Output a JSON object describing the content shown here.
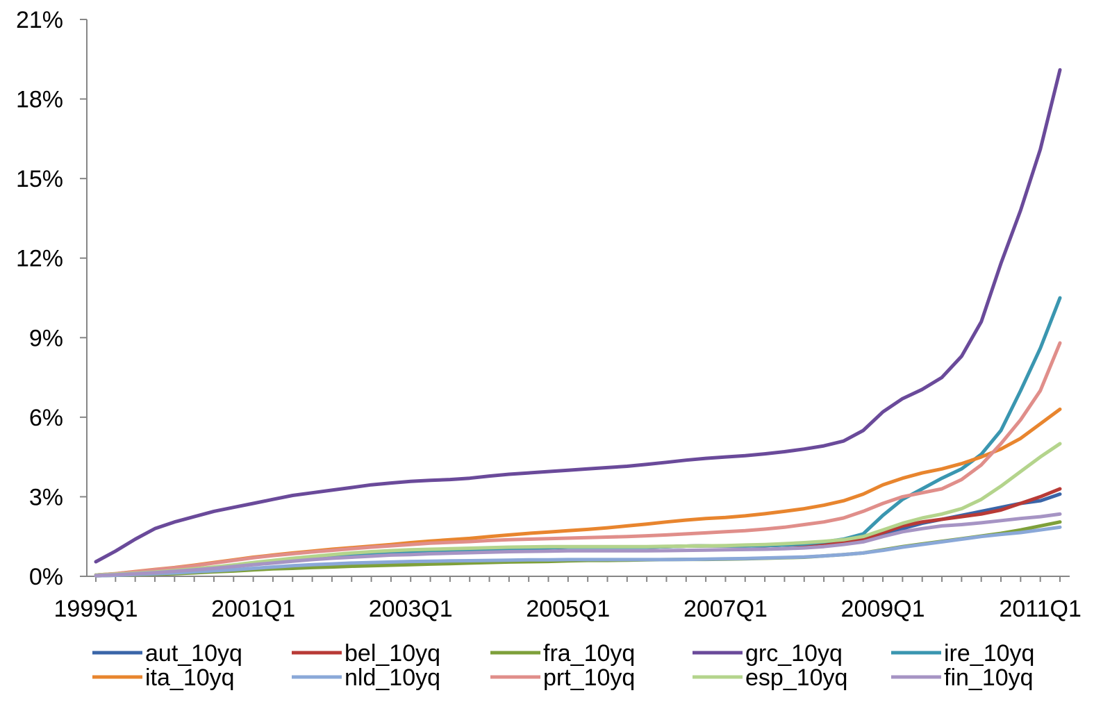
{
  "chart_data": {
    "type": "line",
    "title": "",
    "xlabel": "",
    "ylabel": "",
    "ylim": [
      0,
      21
    ],
    "y_ticks": [
      0,
      3,
      6,
      9,
      12,
      15,
      18,
      21
    ],
    "y_tick_labels": [
      "0%",
      "3%",
      "6%",
      "9%",
      "12%",
      "15%",
      "18%",
      "21%"
    ],
    "x_ticks": [
      "1999Q1",
      "2001Q1",
      "2003Q1",
      "2005Q1",
      "2007Q1",
      "2009Q1",
      "2011Q1"
    ],
    "x": [
      "1999Q1",
      "1999Q2",
      "1999Q3",
      "1999Q4",
      "2000Q1",
      "2000Q2",
      "2000Q3",
      "2000Q4",
      "2001Q1",
      "2001Q2",
      "2001Q3",
      "2001Q4",
      "2002Q1",
      "2002Q2",
      "2002Q3",
      "2002Q4",
      "2003Q1",
      "2003Q2",
      "2003Q3",
      "2003Q4",
      "2004Q1",
      "2004Q2",
      "2004Q3",
      "2004Q4",
      "2005Q1",
      "2005Q2",
      "2005Q3",
      "2005Q4",
      "2006Q1",
      "2006Q2",
      "2006Q3",
      "2006Q4",
      "2007Q1",
      "2007Q2",
      "2007Q3",
      "2007Q4",
      "2008Q1",
      "2008Q2",
      "2008Q3",
      "2008Q4",
      "2009Q1",
      "2009Q2",
      "2009Q3",
      "2009Q4",
      "2010Q1",
      "2010Q2",
      "2010Q3",
      "2010Q4",
      "2011Q1",
      "2011Q2"
    ],
    "grid": false,
    "legend_position": "bottom",
    "series": [
      {
        "name": "aut_10yq",
        "color": "#3a65a8",
        "values": [
          0.05,
          0.08,
          0.12,
          0.15,
          0.2,
          0.25,
          0.3,
          0.38,
          0.45,
          0.52,
          0.6,
          0.68,
          0.75,
          0.8,
          0.85,
          0.9,
          0.92,
          0.95,
          0.97,
          1.0,
          1.02,
          1.04,
          1.06,
          1.08,
          1.1,
          1.1,
          1.1,
          1.1,
          1.1,
          1.12,
          1.14,
          1.15,
          1.15,
          1.15,
          1.16,
          1.18,
          1.2,
          1.25,
          1.3,
          1.4,
          1.6,
          1.8,
          2.0,
          2.15,
          2.3,
          2.45,
          2.6,
          2.75,
          2.85,
          3.1
        ]
      },
      {
        "name": "bel_10yq",
        "color": "#b83a36",
        "values": [
          0.05,
          0.08,
          0.12,
          0.15,
          0.2,
          0.25,
          0.3,
          0.38,
          0.45,
          0.52,
          0.6,
          0.68,
          0.75,
          0.8,
          0.85,
          0.9,
          0.92,
          0.95,
          0.97,
          1.0,
          1.02,
          1.04,
          1.06,
          1.08,
          1.1,
          1.1,
          1.1,
          1.1,
          1.1,
          1.12,
          1.14,
          1.15,
          1.15,
          1.15,
          1.16,
          1.18,
          1.2,
          1.25,
          1.3,
          1.4,
          1.65,
          1.9,
          2.05,
          2.15,
          2.25,
          2.35,
          2.5,
          2.75,
          3.0,
          3.3
        ]
      },
      {
        "name": "fra_10yq",
        "color": "#7ea03a",
        "values": [
          0.02,
          0.04,
          0.06,
          0.08,
          0.1,
          0.13,
          0.17,
          0.2,
          0.24,
          0.28,
          0.3,
          0.33,
          0.35,
          0.38,
          0.4,
          0.42,
          0.44,
          0.46,
          0.48,
          0.5,
          0.52,
          0.54,
          0.55,
          0.56,
          0.58,
          0.6,
          0.6,
          0.61,
          0.62,
          0.63,
          0.64,
          0.64,
          0.65,
          0.66,
          0.68,
          0.7,
          0.72,
          0.77,
          0.82,
          0.88,
          1.0,
          1.12,
          1.22,
          1.32,
          1.42,
          1.52,
          1.62,
          1.75,
          1.9,
          2.05
        ]
      },
      {
        "name": "grc_10yq",
        "color": "#6a4a9a",
        "values": [
          0.55,
          0.95,
          1.4,
          1.8,
          2.05,
          2.25,
          2.45,
          2.6,
          2.75,
          2.9,
          3.05,
          3.15,
          3.25,
          3.35,
          3.45,
          3.52,
          3.58,
          3.62,
          3.65,
          3.7,
          3.78,
          3.85,
          3.9,
          3.95,
          4.0,
          4.05,
          4.1,
          4.15,
          4.22,
          4.3,
          4.38,
          4.45,
          4.5,
          4.55,
          4.62,
          4.7,
          4.8,
          4.92,
          5.1,
          5.5,
          6.2,
          6.7,
          7.05,
          7.5,
          8.3,
          9.6,
          11.8,
          13.8,
          16.1,
          19.1
        ]
      },
      {
        "name": "ire_10yq",
        "color": "#3a96b0",
        "values": [
          0.05,
          0.08,
          0.12,
          0.15,
          0.2,
          0.25,
          0.3,
          0.38,
          0.45,
          0.52,
          0.6,
          0.68,
          0.75,
          0.8,
          0.85,
          0.9,
          0.92,
          0.95,
          0.97,
          1.0,
          1.02,
          1.04,
          1.06,
          1.08,
          1.1,
          1.1,
          1.1,
          1.1,
          1.1,
          1.12,
          1.14,
          1.15,
          1.15,
          1.15,
          1.16,
          1.18,
          1.22,
          1.3,
          1.4,
          1.6,
          2.3,
          2.9,
          3.3,
          3.7,
          4.05,
          4.6,
          5.5,
          7.0,
          8.6,
          10.5
        ]
      },
      {
        "name": "ita_10yq",
        "color": "#e8852e",
        "values": [
          0.05,
          0.1,
          0.18,
          0.26,
          0.33,
          0.42,
          0.52,
          0.62,
          0.72,
          0.8,
          0.88,
          0.95,
          1.02,
          1.08,
          1.14,
          1.2,
          1.27,
          1.33,
          1.38,
          1.43,
          1.5,
          1.56,
          1.62,
          1.67,
          1.72,
          1.77,
          1.83,
          1.9,
          1.97,
          2.05,
          2.12,
          2.18,
          2.22,
          2.28,
          2.36,
          2.45,
          2.55,
          2.68,
          2.85,
          3.1,
          3.45,
          3.7,
          3.9,
          4.05,
          4.25,
          4.5,
          4.8,
          5.2,
          5.75,
          6.3
        ]
      },
      {
        "name": "nld_10yq",
        "color": "#8aa8d8",
        "values": [
          0.02,
          0.04,
          0.07,
          0.1,
          0.13,
          0.17,
          0.21,
          0.25,
          0.3,
          0.35,
          0.4,
          0.44,
          0.47,
          0.5,
          0.52,
          0.54,
          0.56,
          0.57,
          0.58,
          0.59,
          0.6,
          0.61,
          0.62,
          0.62,
          0.63,
          0.63,
          0.63,
          0.63,
          0.63,
          0.63,
          0.64,
          0.65,
          0.66,
          0.67,
          0.69,
          0.71,
          0.73,
          0.77,
          0.82,
          0.88,
          0.98,
          1.1,
          1.2,
          1.3,
          1.4,
          1.5,
          1.58,
          1.65,
          1.75,
          1.85
        ]
      },
      {
        "name": "prt_10yq",
        "color": "#e08e8a",
        "values": [
          0.05,
          0.1,
          0.17,
          0.25,
          0.32,
          0.4,
          0.5,
          0.6,
          0.7,
          0.78,
          0.85,
          0.92,
          0.98,
          1.04,
          1.1,
          1.15,
          1.2,
          1.25,
          1.28,
          1.31,
          1.35,
          1.38,
          1.4,
          1.42,
          1.44,
          1.46,
          1.48,
          1.5,
          1.53,
          1.56,
          1.6,
          1.64,
          1.68,
          1.72,
          1.78,
          1.85,
          1.95,
          2.05,
          2.2,
          2.45,
          2.75,
          3.0,
          3.15,
          3.3,
          3.65,
          4.2,
          5.0,
          5.9,
          7.0,
          8.8
        ]
      },
      {
        "name": "esp_10yq",
        "color": "#b4d48c",
        "values": [
          0.05,
          0.08,
          0.12,
          0.16,
          0.22,
          0.28,
          0.35,
          0.43,
          0.52,
          0.6,
          0.68,
          0.75,
          0.82,
          0.88,
          0.93,
          0.97,
          1.0,
          1.02,
          1.04,
          1.06,
          1.08,
          1.1,
          1.11,
          1.12,
          1.12,
          1.12,
          1.12,
          1.12,
          1.12,
          1.13,
          1.14,
          1.15,
          1.16,
          1.18,
          1.2,
          1.23,
          1.27,
          1.32,
          1.38,
          1.5,
          1.75,
          2.0,
          2.2,
          2.35,
          2.55,
          2.9,
          3.4,
          3.95,
          4.5,
          5.0
        ]
      },
      {
        "name": "fin_10yq",
        "color": "#a694c4",
        "values": [
          0.03,
          0.06,
          0.1,
          0.14,
          0.19,
          0.24,
          0.3,
          0.37,
          0.44,
          0.5,
          0.57,
          0.63,
          0.68,
          0.72,
          0.76,
          0.8,
          0.82,
          0.85,
          0.87,
          0.89,
          0.91,
          0.93,
          0.94,
          0.95,
          0.96,
          0.96,
          0.96,
          0.96,
          0.96,
          0.97,
          0.98,
          0.99,
          1.0,
          1.01,
          1.02,
          1.04,
          1.07,
          1.12,
          1.2,
          1.3,
          1.5,
          1.68,
          1.8,
          1.9,
          1.95,
          2.02,
          2.1,
          2.18,
          2.25,
          2.35
        ]
      }
    ]
  }
}
